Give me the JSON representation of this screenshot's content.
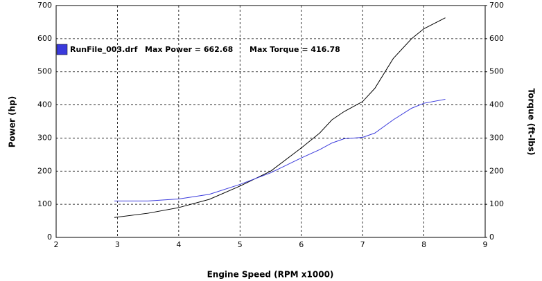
{
  "chart_data": {
    "type": "line",
    "legend_file": "RunFile_003.drf",
    "legend_power": "Max Power = 662.68",
    "legend_torque": "Max Torque = 416.78",
    "legend_color": "#3a3adc",
    "xlabel": "Engine Speed (RPM x1000)",
    "ylabel": "Power (hp)",
    "y2label": "Torque (ft-lbs)",
    "x": [
      2.95,
      3.5,
      4.0,
      4.5,
      5.0,
      5.5,
      6.0,
      6.3,
      6.5,
      6.7,
      7.0,
      7.2,
      7.5,
      7.8,
      8.0,
      8.35
    ],
    "series": [
      {
        "color": "#000000",
        "values": [
          60,
          73,
          90,
          115,
          155,
          200,
          270,
          315,
          355,
          380,
          410,
          450,
          540,
          600,
          630,
          663
        ]
      },
      {
        "color": "#3a3adc",
        "axis": "y2",
        "values": [
          110,
          110,
          116,
          130,
          160,
          195,
          240,
          265,
          285,
          298,
          302,
          315,
          355,
          390,
          405,
          417
        ]
      }
    ],
    "xlim": [
      2,
      9
    ],
    "xticks": [
      2,
      3,
      4,
      5,
      6,
      7,
      8,
      9
    ],
    "ylim": [
      0,
      700
    ],
    "yticks": [
      0,
      100,
      200,
      300,
      400,
      500,
      600,
      700
    ],
    "y2lim": [
      0,
      700
    ],
    "y2ticks": [
      0,
      100,
      200,
      300,
      400,
      500,
      600,
      700
    ],
    "grid": true
  }
}
